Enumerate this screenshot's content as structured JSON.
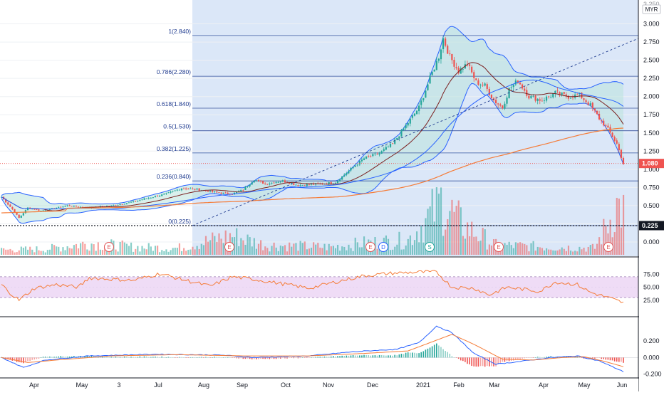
{
  "currency": "MYR",
  "colors": {
    "up": "#26a69a",
    "down": "#ef5350",
    "ma20": "#7b1f1f",
    "ma50": "#2962ff",
    "ma200": "#f57c38",
    "bbFill": "#b9e3dc",
    "bbLine": "#2962ff",
    "fib": "#1f3b8f",
    "highlight": "#dbe7f8",
    "rsi": "#f57c38",
    "rsiBand": "#efdcf6",
    "macd": "#2962ff",
    "signal": "#f57c38",
    "priceBadge": "#ef5350",
    "lineBadge": "#131722"
  },
  "price_axis": {
    "ticks": [
      "3.000",
      "2.750",
      "2.500",
      "2.250",
      "2.000",
      "1.750",
      "1.500",
      "1.250",
      "1.000",
      "0.750",
      "0.500",
      "0.250",
      "0.000"
    ],
    "top_partial": "3.250",
    "current_price": "1.080",
    "line_price": "0.225"
  },
  "rsi_axis": {
    "ticks": [
      "75.00",
      "50.00",
      "25.00"
    ]
  },
  "macd_axis": {
    "ticks": [
      "0.200",
      "0.000",
      "-0.200"
    ]
  },
  "time_axis": {
    "labels": [
      "Apr",
      "May",
      "3",
      "Jul",
      "Aug",
      "Sep",
      "Oct",
      "Nov",
      "Dec",
      "2021",
      "Feb",
      "Mar",
      "Apr",
      "May",
      "Jun"
    ]
  },
  "fib_levels": [
    {
      "label": "0(0.225)",
      "value": 0.225
    },
    {
      "label": "0.236(0.840)",
      "value": 0.84
    },
    {
      "label": "0.382(1.225)",
      "value": 1.225
    },
    {
      "label": "0.5(1.530)",
      "value": 1.53
    },
    {
      "label": "0.618(1.840)",
      "value": 1.84
    },
    {
      "label": "0.786(2.280)",
      "value": 2.28
    },
    {
      "label": "1(2.840)",
      "value": 2.84
    }
  ],
  "event_markers": [
    "E",
    "E",
    "E",
    "D",
    "S",
    "E",
    "E"
  ],
  "chart_data": {
    "type": "candlestick",
    "time_labels": [
      "Apr",
      "May",
      "3",
      "Jul",
      "Aug",
      "Sep",
      "Oct",
      "Nov",
      "Dec",
      "2021",
      "Feb",
      "Mar",
      "Apr",
      "May",
      "Jun"
    ],
    "price_range": [
      0.0,
      3.25
    ],
    "close_keypoints": [
      [
        0,
        0.62
      ],
      [
        5,
        0.45
      ],
      [
        8,
        0.33
      ],
      [
        12,
        0.47
      ],
      [
        18,
        0.43
      ],
      [
        25,
        0.47
      ],
      [
        30,
        0.5
      ],
      [
        40,
        0.47
      ],
      [
        50,
        0.5
      ],
      [
        58,
        0.54
      ],
      [
        66,
        0.6
      ],
      [
        75,
        0.66
      ],
      [
        82,
        0.74
      ],
      [
        90,
        0.72
      ],
      [
        98,
        0.68
      ],
      [
        105,
        0.66
      ],
      [
        110,
        0.72
      ],
      [
        115,
        0.86
      ],
      [
        120,
        0.8
      ],
      [
        128,
        0.84
      ],
      [
        135,
        0.78
      ],
      [
        145,
        0.8
      ],
      [
        152,
        0.82
      ],
      [
        158,
        0.98
      ],
      [
        165,
        1.15
      ],
      [
        172,
        1.22
      ],
      [
        178,
        1.35
      ],
      [
        184,
        1.6
      ],
      [
        190,
        1.85
      ],
      [
        195,
        2.25
      ],
      [
        199,
        2.55
      ],
      [
        201,
        2.8
      ],
      [
        204,
        2.55
      ],
      [
        208,
        2.35
      ],
      [
        212,
        2.45
      ],
      [
        216,
        2.2
      ],
      [
        220,
        2.15
      ],
      [
        224,
        1.95
      ],
      [
        228,
        1.85
      ],
      [
        231,
        2.1
      ],
      [
        235,
        2.22
      ],
      [
        240,
        2.0
      ],
      [
        246,
        1.95
      ],
      [
        252,
        2.05
      ],
      [
        258,
        2.0
      ],
      [
        263,
        2.02
      ],
      [
        268,
        1.88
      ],
      [
        272,
        1.7
      ],
      [
        276,
        1.55
      ],
      [
        280,
        1.35
      ],
      [
        283,
        1.08
      ]
    ],
    "volume_keypoints": [
      [
        0,
        0.05
      ],
      [
        20,
        0.06
      ],
      [
        40,
        0.12
      ],
      [
        60,
        0.08
      ],
      [
        80,
        0.07
      ],
      [
        105,
        0.2
      ],
      [
        120,
        0.1
      ],
      [
        150,
        0.08
      ],
      [
        165,
        0.12
      ],
      [
        185,
        0.15
      ],
      [
        195,
        0.4
      ],
      [
        200,
        0.55
      ],
      [
        210,
        0.3
      ],
      [
        225,
        0.1
      ],
      [
        250,
        0.08
      ],
      [
        270,
        0.07
      ],
      [
        280,
        0.5
      ],
      [
        283,
        0.45
      ]
    ],
    "rsi_keypoints": [
      [
        0,
        55
      ],
      [
        5,
        35
      ],
      [
        8,
        25
      ],
      [
        15,
        48
      ],
      [
        25,
        55
      ],
      [
        35,
        50
      ],
      [
        40,
        68
      ],
      [
        60,
        63
      ],
      [
        72,
        76
      ],
      [
        85,
        62
      ],
      [
        95,
        52
      ],
      [
        105,
        70
      ],
      [
        115,
        65
      ],
      [
        130,
        55
      ],
      [
        140,
        48
      ],
      [
        152,
        60
      ],
      [
        165,
        72
      ],
      [
        178,
        77
      ],
      [
        190,
        79
      ],
      [
        198,
        79
      ],
      [
        205,
        50
      ],
      [
        215,
        48
      ],
      [
        222,
        35
      ],
      [
        230,
        50
      ],
      [
        245,
        42
      ],
      [
        252,
        60
      ],
      [
        262,
        55
      ],
      [
        268,
        40
      ],
      [
        276,
        30
      ],
      [
        283,
        20
      ]
    ],
    "macd_keypoints": [
      [
        0,
        0.0
      ],
      [
        10,
        -0.12
      ],
      [
        20,
        -0.03
      ],
      [
        40,
        0.02
      ],
      [
        70,
        0.04
      ],
      [
        100,
        0.03
      ],
      [
        115,
        0.0
      ],
      [
        140,
        0.02
      ],
      [
        160,
        0.07
      ],
      [
        180,
        0.1
      ],
      [
        190,
        0.18
      ],
      [
        198,
        0.38
      ],
      [
        205,
        0.3
      ],
      [
        215,
        0.05
      ],
      [
        225,
        -0.08
      ],
      [
        235,
        -0.05
      ],
      [
        250,
        0.0
      ],
      [
        262,
        0.02
      ],
      [
        272,
        -0.04
      ],
      [
        283,
        -0.17
      ]
    ],
    "signal_keypoints": [
      [
        0,
        0.0
      ],
      [
        12,
        -0.06
      ],
      [
        25,
        -0.03
      ],
      [
        50,
        0.02
      ],
      [
        80,
        0.035
      ],
      [
        110,
        0.02
      ],
      [
        140,
        0.02
      ],
      [
        165,
        0.05
      ],
      [
        185,
        0.08
      ],
      [
        195,
        0.18
      ],
      [
        205,
        0.28
      ],
      [
        215,
        0.16
      ],
      [
        228,
        -0.02
      ],
      [
        242,
        -0.03
      ],
      [
        255,
        0.0
      ],
      [
        265,
        0.01
      ],
      [
        275,
        -0.05
      ],
      [
        283,
        -0.11
      ]
    ]
  }
}
